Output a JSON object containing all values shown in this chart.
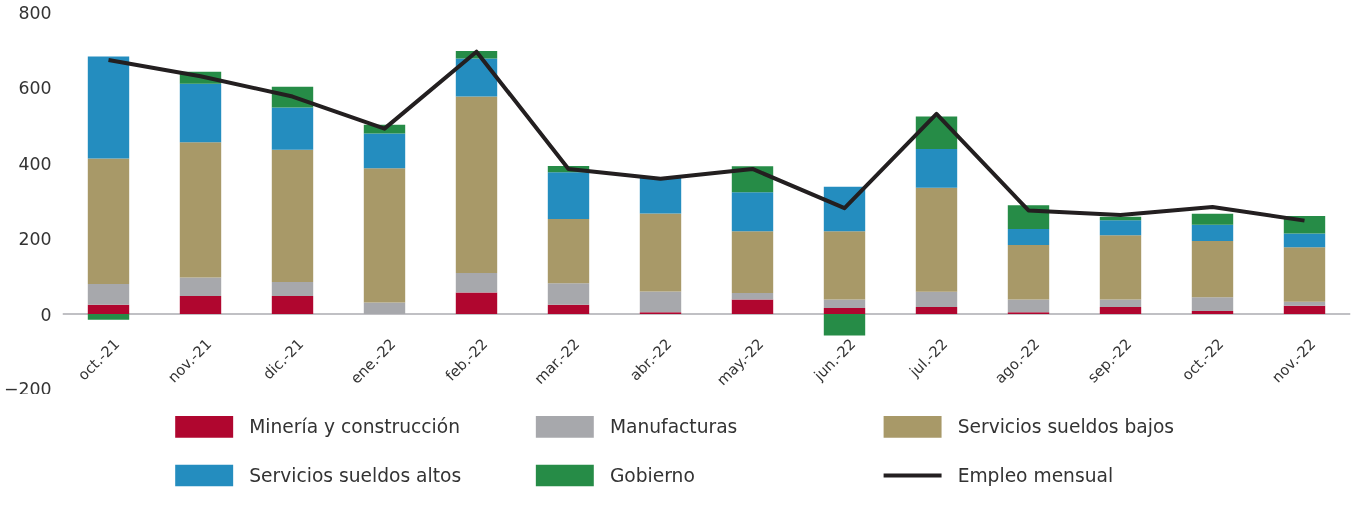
{
  "chart_data": {
    "type": "bar",
    "stacked": true,
    "categories": [
      "oct.-21",
      "nov.-21",
      "dic.-21",
      "ene.-22",
      "feb.-22",
      "mar.-22",
      "abr.-22",
      "may.-22",
      "jun.-22",
      "jul.-22",
      "ago.-22",
      "sep.-22",
      "oct.-22",
      "nov.-22"
    ],
    "series": [
      {
        "name": "Minería y construcción",
        "color": "#b0062f",
        "values": [
          25,
          48,
          48,
          0,
          57,
          25,
          5,
          39,
          16,
          19,
          5,
          19,
          8,
          22
        ]
      },
      {
        "name": "Manufacturas",
        "color": "#a7a8ac",
        "values": [
          55,
          49,
          37,
          31,
          52,
          57,
          55,
          17,
          23,
          40,
          34,
          20,
          37,
          11
        ]
      },
      {
        "name": "Servicios sueldos bajos",
        "color": "#a89968",
        "values": [
          333,
          359,
          351,
          356,
          468,
          170,
          207,
          164,
          181,
          276,
          144,
          170,
          149,
          144
        ]
      },
      {
        "name": "Servicios sueldos altos",
        "color": "#248dbf",
        "values": [
          270,
          155,
          112,
          92,
          101,
          124,
          96,
          103,
          118,
          103,
          43,
          40,
          43,
          37
        ]
      },
      {
        "name": "Gobierno",
        "color": "#268c47",
        "values": [
          -15,
          32,
          55,
          23,
          20,
          17,
          0,
          69,
          -57,
          86,
          63,
          9,
          29,
          46
        ]
      },
      {
        "name": "Empleo mensual",
        "type": "line",
        "color": "#231f20",
        "values": [
          674,
          631,
          577,
          492,
          696,
          385,
          359,
          385,
          281,
          531,
          275,
          263,
          284,
          248
        ]
      }
    ],
    "ylim": [
      -200,
      800
    ],
    "yticks": [
      -200,
      0,
      200,
      400,
      600,
      800
    ],
    "grid": false,
    "legend": "bottom"
  }
}
